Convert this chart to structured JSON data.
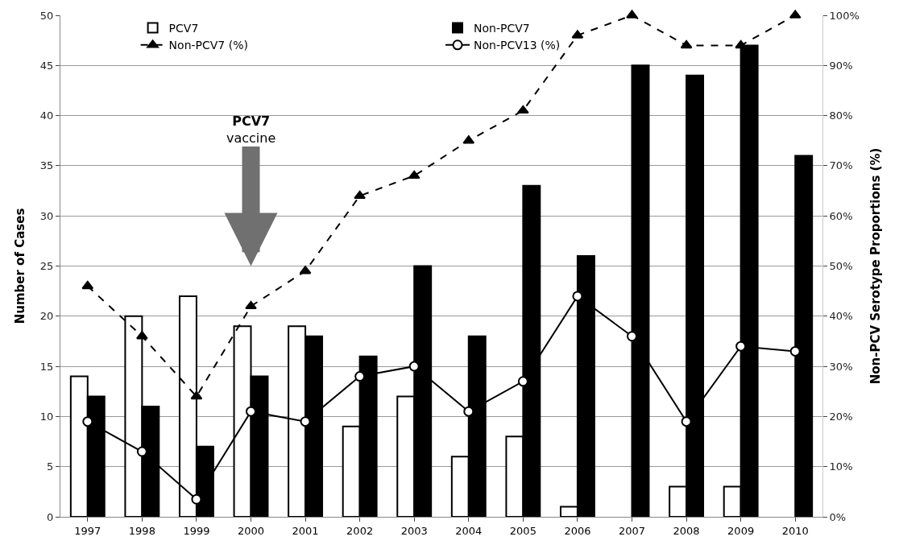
{
  "chart_data": {
    "type": "bar",
    "categories": [
      "1997",
      "1998",
      "1999",
      "2000",
      "2001",
      "2002",
      "2003",
      "2004",
      "2005",
      "2006",
      "2007",
      "2008",
      "2009",
      "2010"
    ],
    "series": [
      {
        "name": "PCV7",
        "color": "#ffffff",
        "values": [
          14,
          20,
          22,
          19,
          19,
          9,
          12,
          6,
          8,
          1,
          0,
          3,
          3,
          0
        ]
      },
      {
        "name": "Non-PCV7",
        "color": "#000000",
        "values": [
          12,
          11,
          7,
          14,
          18,
          16,
          25,
          18,
          33,
          26,
          45,
          44,
          47,
          36
        ]
      },
      {
        "name": "Non-PCV7 (%)",
        "type": "line",
        "axis": "y2",
        "color": "#000000",
        "marker": "triangle",
        "line_style": "dashed",
        "values": [
          46,
          36,
          24,
          42,
          49,
          64,
          68,
          75,
          81,
          96,
          100,
          94,
          94,
          100
        ]
      },
      {
        "name": "Non-PCV13 (%)",
        "type": "line",
        "axis": "y2",
        "color": "#000000",
        "marker": "circle",
        "line_style": "solid",
        "values": [
          19,
          13,
          3.5,
          21,
          19,
          28,
          30,
          21,
          27,
          44,
          36,
          19,
          34,
          33
        ]
      }
    ],
    "ylabel": "Number of Cases",
    "y2label": "Non-PCV Serotype Proportions (%)",
    "ylim": [
      0,
      50
    ],
    "yticks": [
      0,
      5,
      10,
      15,
      20,
      25,
      30,
      35,
      40,
      45,
      50
    ],
    "y2lim": [
      0,
      100
    ],
    "y2ticks": [
      {
        "value": 0,
        "label": "0%"
      },
      {
        "value": 10,
        "label": "10%"
      },
      {
        "value": 20,
        "label": "20%"
      },
      {
        "value": 30,
        "label": "30%"
      },
      {
        "value": 40,
        "label": "40%"
      },
      {
        "value": 50,
        "label": "50%"
      },
      {
        "value": 60,
        "label": "60%"
      },
      {
        "value": 70,
        "label": "70%"
      },
      {
        "value": 80,
        "label": "80%"
      },
      {
        "value": 90,
        "label": "90%"
      },
      {
        "value": 100,
        "label": "100%"
      }
    ],
    "annotations": [
      "PCV7\nvaccine"
    ],
    "grid": "y",
    "legend": "top"
  }
}
